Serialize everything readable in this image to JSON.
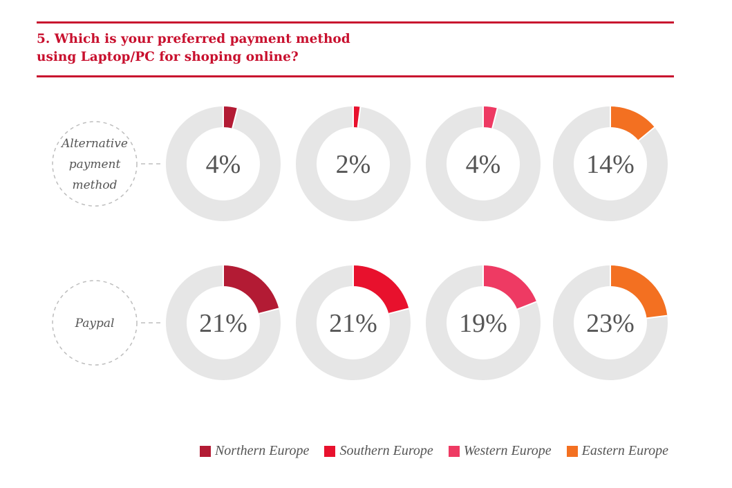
{
  "title": {
    "line1": "5. Which is your preferred payment method",
    "line2": "using Laptop/PC for shoping online?"
  },
  "chart_data": {
    "type": "donut-grid",
    "title": "5. Which is your preferred payment method using Laptop/PC for shoping online?",
    "categories": [
      "Alternative payment method",
      "Paypal"
    ],
    "row_label_lines": [
      [
        "Alternative",
        "payment",
        "method"
      ],
      [
        "Paypal"
      ]
    ],
    "series": [
      {
        "name": "Northern Europe",
        "color": "#b31b34",
        "values": [
          4,
          21
        ]
      },
      {
        "name": "Southern Europe",
        "color": "#e8112d",
        "values": [
          2,
          21
        ]
      },
      {
        "name": "Western Europe",
        "color": "#ee3a63",
        "values": [
          4,
          19
        ]
      },
      {
        "name": "Eastern Europe",
        "color": "#f37021",
        "values": [
          14,
          23
        ]
      }
    ],
    "unit": "%",
    "track_color": "#e6e6e6",
    "legend_position": "bottom-right"
  }
}
